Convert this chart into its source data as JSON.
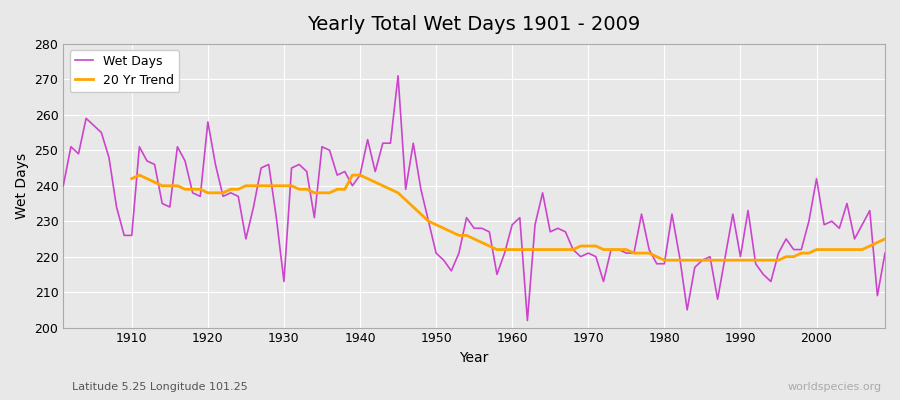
{
  "title": "Yearly Total Wet Days 1901 - 2009",
  "xlabel": "Year",
  "ylabel": "Wet Days",
  "subtitle": "Latitude 5.25 Longitude 101.25",
  "watermark": "worldspecies.org",
  "wet_days_color": "#cc44cc",
  "trend_color": "#ffa500",
  "background_color": "#e8e8e8",
  "plot_bg_color": "#e8e8e8",
  "ylim": [
    200,
    280
  ],
  "yticks": [
    200,
    210,
    220,
    230,
    240,
    250,
    260,
    270,
    280
  ],
  "years": [
    1901,
    1902,
    1903,
    1904,
    1905,
    1906,
    1907,
    1908,
    1909,
    1910,
    1911,
    1912,
    1913,
    1914,
    1915,
    1916,
    1917,
    1918,
    1919,
    1920,
    1921,
    1922,
    1923,
    1924,
    1925,
    1926,
    1927,
    1928,
    1929,
    1930,
    1931,
    1932,
    1933,
    1934,
    1935,
    1936,
    1937,
    1938,
    1939,
    1940,
    1941,
    1942,
    1943,
    1944,
    1945,
    1946,
    1947,
    1948,
    1949,
    1950,
    1951,
    1952,
    1953,
    1954,
    1955,
    1956,
    1957,
    1958,
    1959,
    1960,
    1961,
    1962,
    1963,
    1964,
    1965,
    1966,
    1967,
    1968,
    1969,
    1970,
    1971,
    1972,
    1973,
    1974,
    1975,
    1976,
    1977,
    1978,
    1979,
    1980,
    1981,
    1982,
    1983,
    1984,
    1985,
    1986,
    1987,
    1988,
    1989,
    1990,
    1991,
    1992,
    1993,
    1994,
    1995,
    1996,
    1997,
    1998,
    1999,
    2000,
    2001,
    2002,
    2003,
    2004,
    2005,
    2006,
    2007,
    2008,
    2009
  ],
  "wet_days": [
    240,
    251,
    249,
    259,
    257,
    255,
    248,
    234,
    226,
    226,
    251,
    247,
    246,
    235,
    234,
    251,
    247,
    238,
    237,
    258,
    246,
    237,
    238,
    237,
    225,
    234,
    245,
    246,
    231,
    213,
    245,
    246,
    244,
    231,
    251,
    250,
    243,
    244,
    240,
    243,
    253,
    244,
    252,
    252,
    271,
    239,
    252,
    239,
    230,
    221,
    219,
    216,
    221,
    231,
    228,
    228,
    227,
    215,
    221,
    229,
    231,
    202,
    229,
    238,
    227,
    228,
    227,
    222,
    220,
    221,
    220,
    213,
    222,
    222,
    221,
    221,
    232,
    222,
    218,
    218,
    232,
    220,
    205,
    217,
    219,
    220,
    208,
    220,
    232,
    220,
    233,
    218,
    215,
    213,
    221,
    225,
    222,
    222,
    230,
    242,
    229,
    230,
    228,
    235,
    225,
    229,
    233,
    209,
    221
  ],
  "trend_years": [
    1910,
    1911,
    1912,
    1913,
    1914,
    1915,
    1916,
    1917,
    1918,
    1919,
    1920,
    1921,
    1922,
    1923,
    1924,
    1925,
    1926,
    1927,
    1928,
    1929,
    1930,
    1931,
    1932,
    1933,
    1934,
    1935,
    1936,
    1937,
    1938,
    1939,
    1940,
    1941,
    1942,
    1943,
    1944,
    1945,
    1946,
    1947,
    1948,
    1949,
    1950,
    1951,
    1952,
    1953,
    1954,
    1955,
    1956,
    1957,
    1958,
    1959,
    1960,
    1961,
    1962,
    1963,
    1964,
    1965,
    1966,
    1967,
    1968,
    1969,
    1970,
    1971,
    1972,
    1973,
    1974,
    1975,
    1976,
    1977,
    1978,
    1979,
    1980,
    1981,
    1982,
    1983,
    1984,
    1985,
    1986,
    1987,
    1988,
    1989,
    1990,
    1991,
    1992,
    1993,
    1994,
    1995,
    1996,
    1997,
    1998,
    1999,
    2000,
    2001,
    2002,
    2003,
    2004,
    2005,
    2006,
    2007,
    2008,
    2009
  ],
  "trend_values": [
    242,
    243,
    242,
    241,
    240,
    240,
    240,
    239,
    239,
    239,
    238,
    238,
    238,
    239,
    239,
    240,
    240,
    240,
    240,
    240,
    240,
    240,
    239,
    239,
    238,
    238,
    238,
    239,
    239,
    243,
    243,
    242,
    241,
    240,
    239,
    238,
    236,
    234,
    232,
    230,
    229,
    228,
    227,
    226,
    226,
    225,
    224,
    223,
    222,
    222,
    222,
    222,
    222,
    222,
    222,
    222,
    222,
    222,
    222,
    223,
    223,
    223,
    222,
    222,
    222,
    222,
    221,
    221,
    221,
    220,
    219,
    219,
    219,
    219,
    219,
    219,
    219,
    219,
    219,
    219,
    219,
    219,
    219,
    219,
    219,
    219,
    220,
    220,
    221,
    221,
    222,
    222,
    222,
    222,
    222,
    222,
    222,
    223,
    224,
    225
  ]
}
